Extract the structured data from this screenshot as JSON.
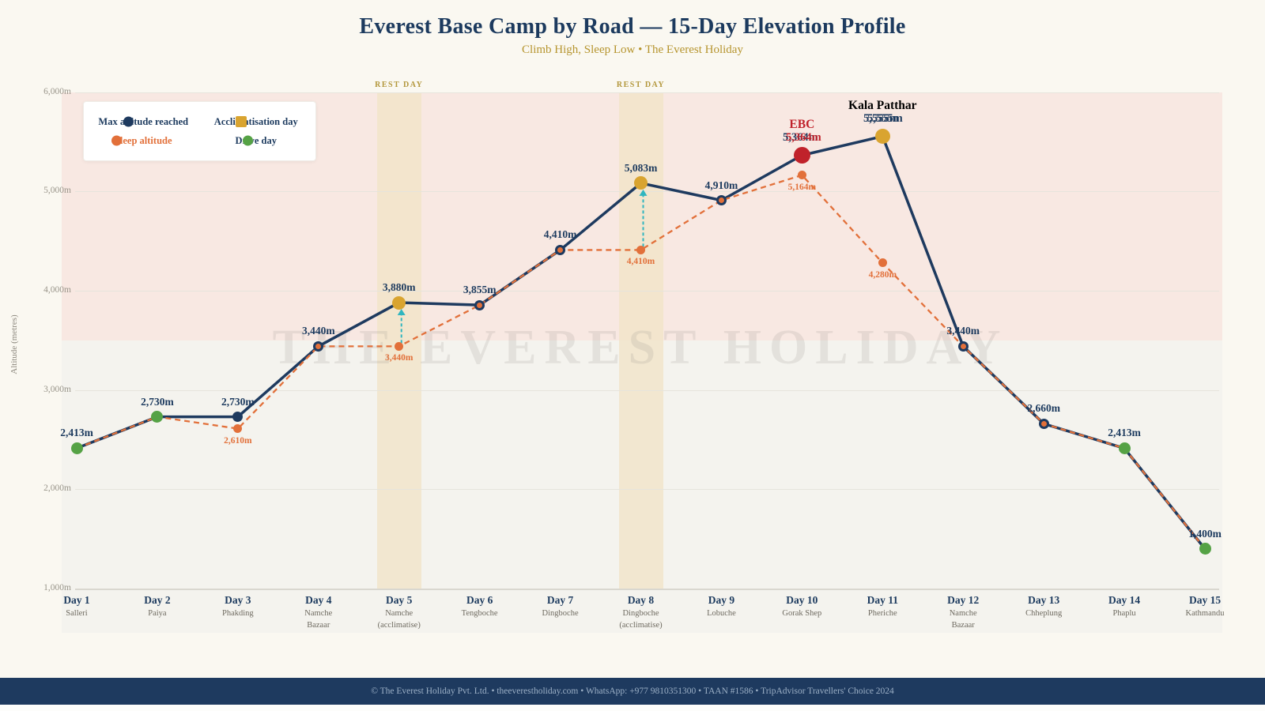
{
  "header": {
    "title": "Everest Base Camp by Road — 15-Day Elevation Profile",
    "subtitle": "Climb High, Sleep Low  •  The Everest Holiday"
  },
  "watermark": "THE EVEREST HOLIDAY",
  "ylabel": "Altitude (metres)",
  "rest_day_label": "REST DAY",
  "legend": {
    "max_label": "Max altitude reached",
    "sleep_label": "Sleep altitude",
    "acclim_label": "Acclimatisation day",
    "drive_label": "Drive day"
  },
  "footer": {
    "text": "© The Everest Holiday Pvt. Ltd.  •  theeverestholiday.com  •  WhatsApp: +977 9810351300  •  TAAN #1586  •  TripAdvisor Travellers' Choice 2024"
  },
  "colors": {
    "navy": "#1e3a5f",
    "orange": "#e2703a",
    "gold": "#d9a430",
    "green": "#55a245",
    "red": "#c0222b",
    "teal": "#2fb5bf",
    "pink_zone": "#f9e4de",
    "rest_band": "#f1e3c8",
    "title": "#1c3a5e",
    "subtitle_gold": "#b6952f",
    "footer_bg": "#1e3a5f",
    "footer_text": "#9cb0c6"
  },
  "chart_data": {
    "type": "line",
    "title": "Everest Base Camp by Road — 15-Day Elevation Profile",
    "xlabel": "",
    "ylabel": "Altitude (metres)",
    "ylim": [
      1000,
      6000
    ],
    "yticks": [
      1000,
      2000,
      3000,
      4000,
      5000,
      6000
    ],
    "ytick_suffix": "m",
    "grid": true,
    "legend_position": "top-left",
    "high_altitude_zone": [
      3500,
      6000
    ],
    "rest_days": [
      5,
      8
    ],
    "series": [
      {
        "name": "Max altitude reached",
        "color": "#1e3a5f",
        "style": "solid",
        "values": [
          2413,
          2730,
          2730,
          3440,
          3880,
          3855,
          4410,
          5083,
          4910,
          5364,
          5555,
          3440,
          2660,
          2413,
          1400
        ]
      },
      {
        "name": "Sleep altitude",
        "color": "#e2703a",
        "style": "dashed",
        "values": [
          2413,
          2730,
          2610,
          3440,
          3440,
          3855,
          4410,
          4410,
          4910,
          5164,
          4280,
          3440,
          2660,
          2413,
          1400
        ]
      }
    ],
    "days": [
      {
        "day": "Day 1",
        "location": "Salleri",
        "location2": "",
        "max": 2413,
        "sleep": 2413,
        "kind": "drive"
      },
      {
        "day": "Day 2",
        "location": "Paiya",
        "location2": "",
        "max": 2730,
        "sleep": 2730,
        "kind": "drive"
      },
      {
        "day": "Day 3",
        "location": "Phakding",
        "location2": "",
        "max": 2730,
        "sleep": 2610,
        "kind": "trek"
      },
      {
        "day": "Day 4",
        "location": "Namche",
        "location2": "Bazaar",
        "max": 3440,
        "sleep": 3440,
        "kind": "trek"
      },
      {
        "day": "Day 5",
        "location": "Namche",
        "location2": "(acclimatise)",
        "max": 3880,
        "sleep": 3440,
        "kind": "acclim",
        "rest": true
      },
      {
        "day": "Day 6",
        "location": "Tengboche",
        "location2": "",
        "max": 3855,
        "sleep": 3855,
        "kind": "trek"
      },
      {
        "day": "Day 7",
        "location": "Dingboche",
        "location2": "",
        "max": 4410,
        "sleep": 4410,
        "kind": "trek"
      },
      {
        "day": "Day 8",
        "location": "Dingboche",
        "location2": "(acclimatise)",
        "max": 5083,
        "sleep": 4410,
        "kind": "acclim",
        "rest": true
      },
      {
        "day": "Day 9",
        "location": "Lobuche",
        "location2": "",
        "max": 4910,
        "sleep": 4910,
        "kind": "trek"
      },
      {
        "day": "Day 10",
        "location": "Gorak Shep",
        "location2": "",
        "max": 5364,
        "sleep": 5164,
        "kind": "ebc",
        "annotation": {
          "title": "EBC",
          "color": "red"
        }
      },
      {
        "day": "Day 11",
        "location": "Pheriche",
        "location2": "",
        "max": 5555,
        "sleep": 4280,
        "kind": "summit",
        "annotation": {
          "title": "Kala Patthar",
          "color": "navy"
        }
      },
      {
        "day": "Day 12",
        "location": "Namche",
        "location2": "Bazaar",
        "max": 3440,
        "sleep": 3440,
        "kind": "trek"
      },
      {
        "day": "Day 13",
        "location": "Chheplung",
        "location2": "",
        "max": 2660,
        "sleep": 2660,
        "kind": "trek"
      },
      {
        "day": "Day 14",
        "location": "Phaplu",
        "location2": "",
        "max": 2413,
        "sleep": 2413,
        "kind": "drive"
      },
      {
        "day": "Day 15",
        "location": "Kathmandu",
        "location2": "",
        "max": 1400,
        "sleep": 1400,
        "kind": "drive"
      }
    ]
  }
}
